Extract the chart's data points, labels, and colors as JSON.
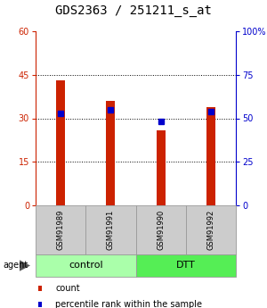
{
  "title": "GDS2363 / 251211_s_at",
  "samples": [
    "GSM91989",
    "GSM91991",
    "GSM91990",
    "GSM91992"
  ],
  "counts": [
    43,
    36,
    26,
    34
  ],
  "percentiles": [
    53,
    55,
    48,
    54
  ],
  "ylim_left": [
    0,
    60
  ],
  "ylim_right": [
    0,
    100
  ],
  "yticks_left": [
    0,
    15,
    30,
    45,
    60
  ],
  "ytick_labels_left": [
    "0",
    "15",
    "30",
    "45",
    "60"
  ],
  "yticks_right": [
    0,
    25,
    50,
    75,
    100
  ],
  "ytick_labels_right": [
    "0",
    "25",
    "50",
    "75",
    "100%"
  ],
  "groups": [
    {
      "label": "control",
      "indices": [
        0,
        1
      ],
      "color": "#aaffaa"
    },
    {
      "label": "DTT",
      "indices": [
        2,
        3
      ],
      "color": "#55ee55"
    }
  ],
  "bar_color": "#cc2200",
  "percentile_color": "#0000cc",
  "bar_width": 0.18,
  "bg_color": "#ffffff",
  "sample_box_color": "#cccccc",
  "agent_label": "agent",
  "legend_items": [
    {
      "label": "count",
      "color": "#cc2200"
    },
    {
      "label": "percentile rank within the sample",
      "color": "#0000cc"
    }
  ],
  "title_fontsize": 10,
  "tick_fontsize": 7,
  "label_fontsize": 7,
  "group_label_fontsize": 8,
  "sample_fontsize": 6
}
